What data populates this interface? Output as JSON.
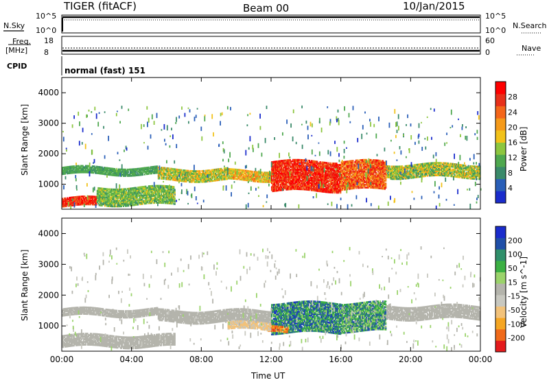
{
  "header": {
    "radar": "TIGER (fitACF)",
    "beam": "Beam 00",
    "date": "10/Jan/2015"
  },
  "strips": {
    "nsky_label": "N.Sky",
    "nsky_tick_top": "10^5",
    "nsky_tick_bottom": "10^0",
    "nsearch_label": "N.Search",
    "nsearch_tick_top": "10^5",
    "nsearch_tick_bottom": "10^0",
    "freq_label_1": "Freq.",
    "freq_label_2": "[MHz]",
    "freq_tick_top": "18",
    "freq_tick_bottom": "8",
    "nave_label": "Nave",
    "nave_tick_top": "60",
    "nave_tick_bottom": "0",
    "cpid_label": "CPID",
    "cpid_text": "normal (fast) 151"
  },
  "colors": {
    "power": [
      "#1a2ccc",
      "#2a5fb8",
      "#3a8a6a",
      "#4fa84f",
      "#8dc63f",
      "#f2c21a",
      "#f59a1a",
      "#f4661a",
      "#e8301a",
      "#ff0000"
    ],
    "velocity": [
      "#e41a1c",
      "#f06a1a",
      "#f5a623",
      "#f2c27a",
      "#c8c8c0",
      "#b4b4ac",
      "#9bd36b",
      "#3cb043",
      "#2f8f6a",
      "#1f4fa8",
      "#1a2ccc"
    ]
  },
  "chart_data": [
    {
      "type": "heatmap",
      "panel": "power",
      "ylabel": "Slant Range [km]",
      "y_ticks": [
        "1000",
        "2000",
        "3000",
        "4000"
      ],
      "ylim": [
        180,
        4500
      ],
      "x_ticks": [
        "00:00",
        "04:00",
        "08:00",
        "12:00",
        "16:00",
        "20:00",
        "00:00"
      ],
      "xlim_hours": [
        0,
        24
      ],
      "colorbar": {
        "label": "Power [dB]",
        "ticks": [
          "4",
          "8",
          "12",
          "16",
          "20",
          "24",
          "28"
        ],
        "range": [
          0,
          30
        ]
      },
      "bands": [
        {
          "t0": 0.0,
          "t1": 5.5,
          "r0": 1300,
          "r1": 1550,
          "v0": 8,
          "v1": 12
        },
        {
          "t0": 5.5,
          "t1": 9.5,
          "r0": 1100,
          "r1": 1500,
          "v0": 10,
          "v1": 20
        },
        {
          "t0": 9.5,
          "t1": 12.0,
          "r0": 1100,
          "r1": 1450,
          "v0": 12,
          "v1": 22
        },
        {
          "t0": 12.0,
          "t1": 16.0,
          "r0": 750,
          "r1": 1750,
          "v0": 22,
          "v1": 30
        },
        {
          "t0": 16.0,
          "t1": 18.6,
          "r0": 800,
          "r1": 1750,
          "v0": 18,
          "v1": 28
        },
        {
          "t0": 18.6,
          "t1": 24.0,
          "r0": 1200,
          "r1": 1650,
          "v0": 8,
          "v1": 20
        },
        {
          "t0": 0.0,
          "t1": 2.0,
          "r0": 250,
          "r1": 550,
          "v0": 22,
          "v1": 30
        },
        {
          "t0": 2.0,
          "t1": 6.5,
          "r0": 300,
          "r1": 900,
          "v0": 8,
          "v1": 16
        }
      ]
    },
    {
      "type": "heatmap",
      "panel": "velocity",
      "ylabel": "Slant Range [km]",
      "y_ticks": [
        "1000",
        "2000",
        "3000",
        "4000"
      ],
      "ylim": [
        180,
        4500
      ],
      "x_ticks": [
        "00:00",
        "04:00",
        "08:00",
        "12:00",
        "16:00",
        "20:00",
        "00:00"
      ],
      "xlabel": "Time UT",
      "xlim_hours": [
        0,
        24
      ],
      "colorbar": {
        "label": "Velocity [m s^-1]",
        "ticks": [
          "200",
          "100",
          "50",
          "15",
          "-15",
          "-50",
          "-100",
          "-200"
        ],
        "range": [
          -250,
          250
        ]
      },
      "bands": [
        {
          "t0": 0.0,
          "t1": 5.5,
          "r0": 1300,
          "r1": 1550,
          "v0": -15,
          "v1": 15
        },
        {
          "t0": 5.5,
          "t1": 12.0,
          "r0": 1100,
          "r1": 1500,
          "v0": -15,
          "v1": 15
        },
        {
          "t0": 12.0,
          "t1": 16.0,
          "r0": 750,
          "r1": 1750,
          "v0": 50,
          "v1": 220
        },
        {
          "t0": 16.0,
          "t1": 18.6,
          "r0": 800,
          "r1": 1750,
          "v0": 15,
          "v1": 200
        },
        {
          "t0": 18.6,
          "t1": 24.0,
          "r0": 1200,
          "r1": 1650,
          "v0": -15,
          "v1": 15
        },
        {
          "t0": 11.8,
          "t1": 13.0,
          "r0": 750,
          "r1": 950,
          "v0": -220,
          "v1": -100
        },
        {
          "t0": 0.0,
          "t1": 6.5,
          "r0": 300,
          "r1": 700,
          "v0": -15,
          "v1": 15
        },
        {
          "t0": 9.5,
          "t1": 12.0,
          "r0": 850,
          "r1": 1100,
          "v0": -100,
          "v1": -50
        }
      ]
    }
  ]
}
